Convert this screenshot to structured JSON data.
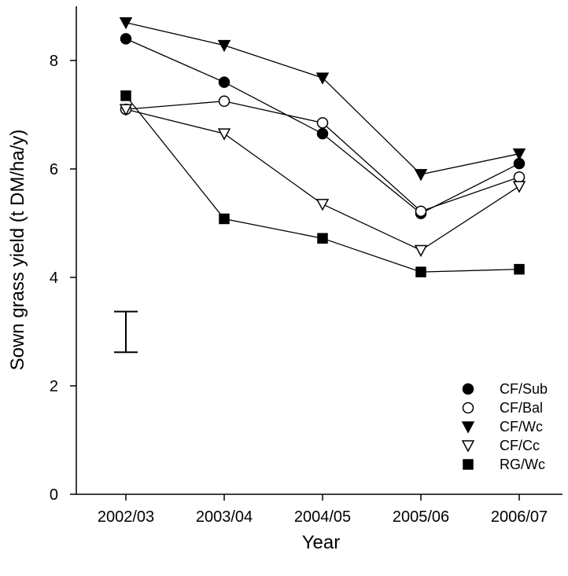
{
  "chart_data": {
    "type": "line",
    "title": "",
    "xlabel": "Year",
    "ylabel": "Sown grass yield (t DM/ha/y)",
    "categories": [
      "2002/03",
      "2003/04",
      "2004/05",
      "2005/06",
      "2006/07"
    ],
    "yticks": [
      "0",
      "2",
      "4",
      "6",
      "8"
    ],
    "ylim": [
      0,
      9
    ],
    "grid": false,
    "legend_position": "bottom-right",
    "series": [
      {
        "name": "CF/Sub",
        "marker": "circle-filled",
        "values": [
          8.4,
          7.6,
          6.65,
          5.18,
          6.1
        ]
      },
      {
        "name": "CF/Bal",
        "marker": "circle-open",
        "values": [
          7.1,
          7.25,
          6.85,
          5.22,
          5.85
        ]
      },
      {
        "name": "CF/Wc",
        "marker": "triangle-down-filled",
        "values": [
          8.7,
          8.28,
          7.68,
          5.9,
          6.28
        ]
      },
      {
        "name": "CF/Cc",
        "marker": "triangle-down-open",
        "values": [
          7.1,
          6.65,
          5.35,
          4.5,
          5.68
        ]
      },
      {
        "name": "RG/Wc",
        "marker": "square-filled",
        "values": [
          7.35,
          5.08,
          4.72,
          4.1,
          4.15
        ]
      }
    ],
    "error_bar": {
      "low": 2.62,
      "high": 3.37,
      "x_category": "2002/03"
    },
    "colors": {
      "line": "#000000",
      "fill": "#000000",
      "open": "#ffffff"
    }
  }
}
